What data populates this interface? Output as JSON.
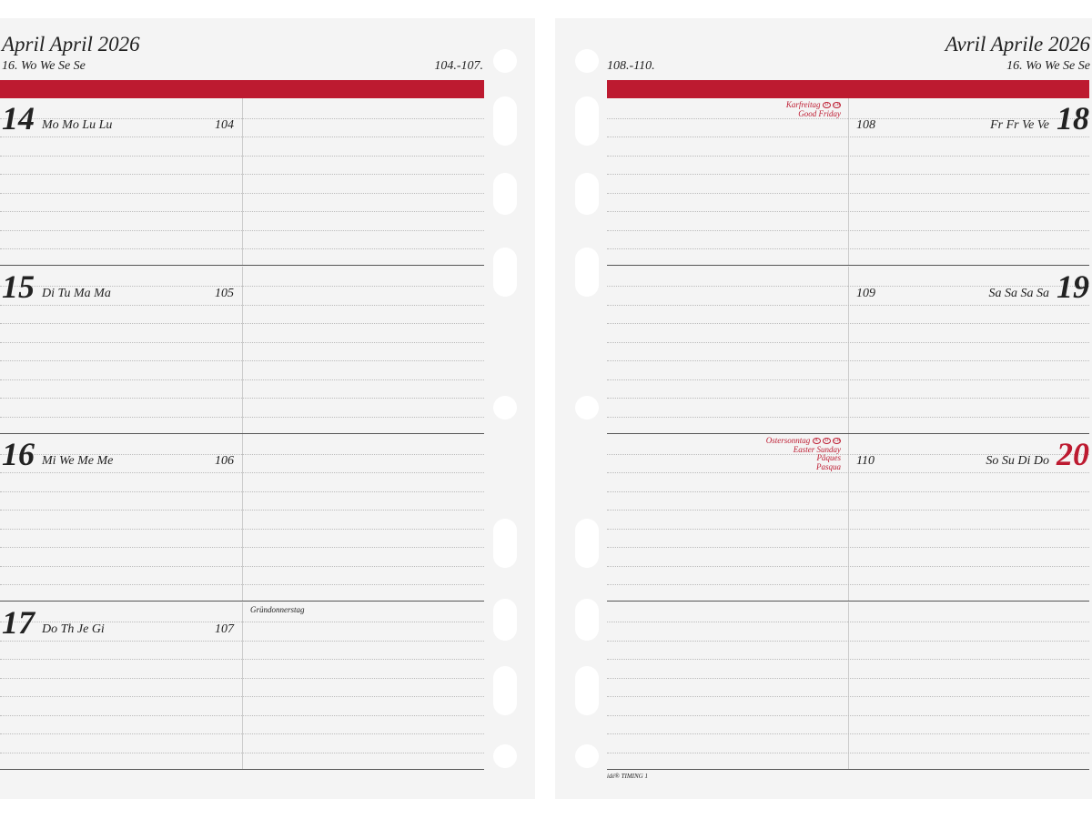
{
  "left": {
    "title": "April  April 2026",
    "week": "16. Wo We Se Se",
    "day_range": "104.-107.",
    "days": [
      {
        "num": "14",
        "names": "Mo Mo Lu Lu",
        "doy": "104",
        "note": ""
      },
      {
        "num": "15",
        "names": "Di Tu Ma Ma",
        "doy": "105",
        "note": ""
      },
      {
        "num": "16",
        "names": "Mi We Me Me",
        "doy": "106",
        "note": ""
      },
      {
        "num": "17",
        "names": "Do Th Je Gi",
        "doy": "107",
        "note": "Gründonnerstag"
      }
    ]
  },
  "right": {
    "title": "Avril  Aprile 2026",
    "week": "16. Wo We Se Se",
    "day_range": "108.-110.",
    "days": [
      {
        "num": "18",
        "names": "Fr Fr Ve Ve",
        "doy": "108",
        "holiday": [
          "Karfreitag",
          "Good Friday"
        ],
        "badges": [
          "D",
          "CH"
        ]
      },
      {
        "num": "19",
        "names": "Sa Sa Sa Sa",
        "doy": "109"
      },
      {
        "num": "20",
        "names": "So Su Di Do",
        "doy": "110",
        "holiday": [
          "Ostersonntag",
          "Easter Sunday",
          "Pâques",
          "Pasqua"
        ],
        "badges": [
          "A",
          "D",
          "CH"
        ],
        "sunday": true
      }
    ],
    "footer": "idé® TIMING 1"
  },
  "colors": {
    "accent": "#bd1a30",
    "page": "#f4f4f4"
  }
}
